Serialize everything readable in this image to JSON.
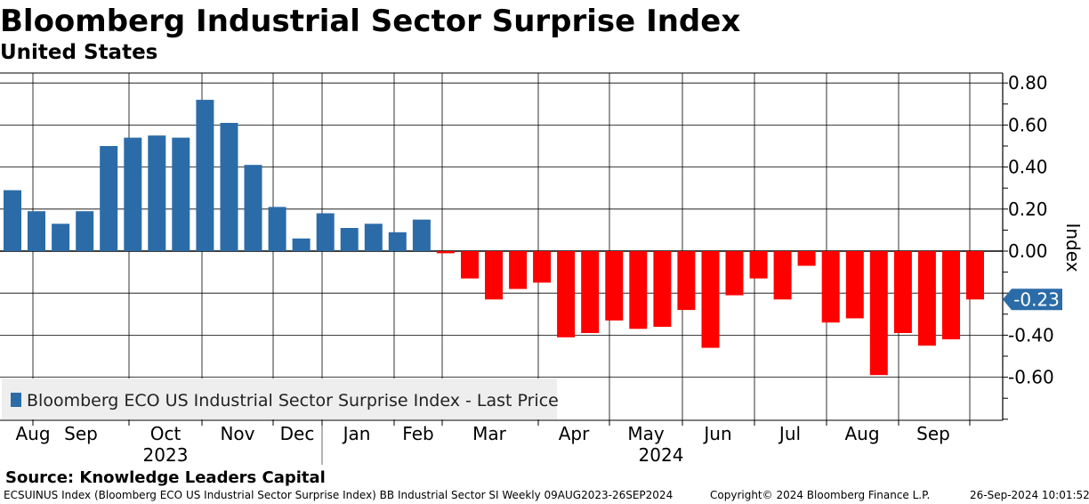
{
  "header": {
    "title": "Bloomberg Industrial Sector Surprise Index",
    "subtitle": "United States"
  },
  "source": "Source: Knowledge Leaders Capital",
  "footer": {
    "left": "ECSUINUS Index (Bloomberg ECO US Industrial Sector Surprise Index) BB Industrial Sector SI  Weekly 09AUG2023-26SEP2024",
    "middle": "Copyright© 2024 Bloomberg Finance L.P.",
    "right": "26-Sep-2024 10:01:52"
  },
  "colors": {
    "positive": "#2b6ca8",
    "negative": "#ff0000",
    "last_price_tag": "#2b6ca8",
    "legend_bg": "#eeeeee",
    "grid": "#000000"
  },
  "chart_data": {
    "type": "bar",
    "title": "Bloomberg Industrial Sector Surprise Index",
    "subtitle": "United States",
    "ylabel": "Index",
    "xlabel": "",
    "ylim": [
      -0.8,
      0.82
    ],
    "yticks": [
      0.8,
      0.6,
      0.4,
      0.2,
      0.0,
      -0.2,
      -0.4,
      -0.6
    ],
    "ytick_labels": [
      "0.80",
      "0.60",
      "0.40",
      "0.20",
      "0.00",
      "",
      "-0.40",
      "-0.60"
    ],
    "grid": true,
    "legend": {
      "label": "Bloomberg ECO US Industrial Sector Surprise Index - Last Price",
      "position": "bottom-left"
    },
    "last_price": {
      "value": -0.23,
      "label": "-0.23"
    },
    "series": [
      {
        "name": "Bloomberg ECO US Industrial Sector Surprise Index - Last Price",
        "values": [
          0.29,
          0.19,
          0.13,
          0.19,
          0.5,
          0.54,
          0.55,
          0.54,
          0.72,
          0.61,
          0.41,
          0.21,
          0.06,
          0.18,
          0.11,
          0.13,
          0.09,
          0.15,
          -0.01,
          -0.13,
          -0.23,
          -0.18,
          -0.15,
          -0.41,
          -0.39,
          -0.33,
          -0.37,
          -0.36,
          -0.28,
          -0.46,
          -0.21,
          -0.13,
          -0.23,
          -0.07,
          -0.34,
          -0.32,
          -0.59,
          -0.39,
          -0.45,
          -0.42,
          -0.23
        ]
      }
    ],
    "x_month_labels": [
      "Aug",
      "Sep",
      "Oct",
      "Nov",
      "Dec",
      "Jan",
      "Feb",
      "Mar",
      "Apr",
      "May",
      "Jun",
      "Jul",
      "Aug",
      "Sep"
    ],
    "x_year_labels": [
      "2023",
      "2024"
    ]
  }
}
